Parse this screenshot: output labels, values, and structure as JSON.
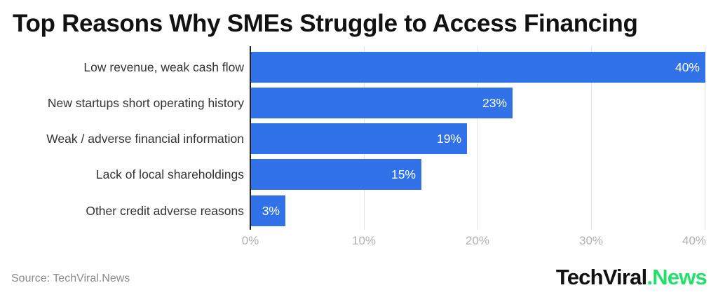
{
  "title": "Top Reasons Why SMEs Struggle to Access Financing",
  "source": "Source: TechViral.News",
  "brand": {
    "part1": "TechViral",
    "part2": ".News",
    "color1": "#111111",
    "color2": "#22e06a"
  },
  "colors": {
    "bar": "#3272e8",
    "grid": "#e2e2e2",
    "axis": "#222222",
    "tick_label": "#b0b0b0"
  },
  "chart_data": {
    "type": "bar",
    "orientation": "horizontal",
    "title": "Top Reasons Why SMEs Struggle to Access Financing",
    "xlabel": "",
    "ylabel": "",
    "categories": [
      "Low revenue, weak cash flow",
      "New startups short operating history",
      "Weak / adverse financial information",
      "Lack of local shareholdings",
      "Other credit adverse reasons"
    ],
    "values": [
      40,
      23,
      19,
      15,
      3
    ],
    "value_labels": [
      "40%",
      "23%",
      "19%",
      "15%",
      "3%"
    ],
    "xlim": [
      0,
      40
    ],
    "x_ticks": [
      "0%",
      "10%",
      "20%",
      "30%",
      "40%"
    ],
    "grid": "vertical",
    "legend": "none",
    "source": "Source: TechViral.News"
  }
}
